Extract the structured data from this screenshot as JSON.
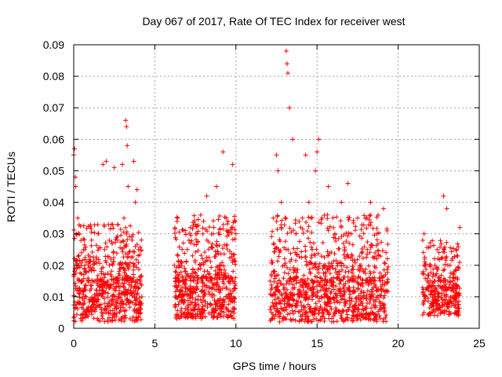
{
  "chart_data": {
    "type": "scatter",
    "title": "Day 067 of 2017, Rate Of TEC Index for receiver west",
    "xlabel": "GPS time / hours",
    "ylabel": "ROTI / TECUs",
    "xlim": [
      0,
      25
    ],
    "ylim": [
      0,
      0.09
    ],
    "xticks": [
      0,
      5,
      10,
      15,
      20,
      25
    ],
    "yticks": [
      0,
      0.01,
      0.02,
      0.03,
      0.04,
      0.05,
      0.06,
      0.07,
      0.08,
      0.09
    ],
    "xtick_labels": [
      "0",
      "5",
      "10",
      "15",
      "20",
      "25"
    ],
    "ytick_labels": [
      "0",
      "0.01",
      "0.02",
      "0.03",
      "0.04",
      "0.05",
      "0.06",
      "0.07",
      "0.08",
      "0.09"
    ],
    "grid": true,
    "marker": "+",
    "series": [
      {
        "name": "ROTI",
        "color": "#ff0000",
        "x": [
          0.0,
          0.05,
          0.1,
          0.12,
          0.15,
          0.18,
          0.2,
          0.25,
          0.3,
          0.35,
          0.4,
          0.5,
          0.6,
          0.7,
          0.8,
          0.9,
          1.0,
          1.1,
          1.2,
          1.3,
          1.4,
          1.5,
          1.6,
          1.7,
          1.8,
          1.9,
          2.0,
          2.1,
          2.2,
          2.3,
          2.4,
          2.5,
          2.6,
          2.7,
          2.8,
          2.9,
          3.0,
          3.1,
          3.2,
          3.25,
          3.3,
          3.35,
          3.4,
          3.5,
          3.6,
          3.7,
          3.8,
          3.9,
          4.0,
          4.1,
          4.2,
          6.2,
          6.4,
          6.6,
          6.8,
          7.0,
          7.2,
          7.4,
          7.6,
          7.8,
          8.0,
          8.2,
          8.4,
          8.6,
          8.8,
          9.0,
          9.2,
          9.4,
          9.6,
          9.8,
          10.0,
          12.1,
          12.3,
          12.5,
          12.6,
          12.8,
          13.0,
          13.1,
          13.15,
          13.2,
          13.3,
          13.5,
          13.7,
          13.9,
          14.1,
          14.3,
          14.5,
          14.7,
          14.9,
          15.0,
          15.1,
          15.3,
          15.5,
          15.7,
          15.9,
          16.1,
          16.3,
          16.5,
          16.7,
          16.9,
          17.1,
          17.3,
          17.5,
          17.7,
          17.9,
          18.1,
          18.3,
          18.5,
          18.7,
          18.9,
          19.1,
          19.3,
          21.6,
          21.8,
          22.0,
          22.2,
          22.4,
          22.6,
          22.8,
          23.0,
          23.2,
          23.4,
          23.6,
          23.8
        ],
        "y": [
          0.055,
          0.057,
          0.048,
          0.045,
          0.03,
          0.02,
          0.012,
          0.035,
          0.02,
          0.011,
          0.008,
          0.015,
          0.025,
          0.01,
          0.006,
          0.02,
          0.012,
          0.028,
          0.009,
          0.015,
          0.021,
          0.03,
          0.012,
          0.018,
          0.052,
          0.025,
          0.053,
          0.015,
          0.02,
          0.009,
          0.033,
          0.051,
          0.012,
          0.028,
          0.018,
          0.009,
          0.052,
          0.035,
          0.066,
          0.064,
          0.058,
          0.045,
          0.02,
          0.012,
          0.028,
          0.053,
          0.04,
          0.044,
          0.025,
          0.015,
          0.01,
          0.02,
          0.035,
          0.012,
          0.008,
          0.025,
          0.032,
          0.015,
          0.03,
          0.02,
          0.034,
          0.042,
          0.015,
          0.03,
          0.045,
          0.02,
          0.056,
          0.035,
          0.015,
          0.052,
          0.03,
          0.015,
          0.035,
          0.055,
          0.05,
          0.04,
          0.02,
          0.088,
          0.084,
          0.081,
          0.07,
          0.06,
          0.03,
          0.012,
          0.035,
          0.055,
          0.04,
          0.025,
          0.05,
          0.056,
          0.06,
          0.035,
          0.02,
          0.045,
          0.015,
          0.03,
          0.012,
          0.04,
          0.025,
          0.046,
          0.03,
          0.015,
          0.035,
          0.02,
          0.01,
          0.025,
          0.04,
          0.015,
          0.03,
          0.008,
          0.038,
          0.012,
          0.03,
          0.015,
          0.02,
          0.008,
          0.025,
          0.015,
          0.042,
          0.038,
          0.02,
          0.012,
          0.025,
          0.032
        ],
        "dense_bands": [
          {
            "xmin": 0.0,
            "xmax": 4.2,
            "ylow": 0.002,
            "ytypical": 0.015,
            "yhigh": 0.033,
            "n": 620
          },
          {
            "xmin": 6.2,
            "xmax": 10.0,
            "ylow": 0.003,
            "ytypical": 0.016,
            "yhigh": 0.036,
            "n": 580
          },
          {
            "xmin": 12.1,
            "xmax": 19.4,
            "ylow": 0.002,
            "ytypical": 0.015,
            "yhigh": 0.036,
            "n": 1000
          },
          {
            "xmin": 21.5,
            "xmax": 23.8,
            "ylow": 0.004,
            "ytypical": 0.013,
            "yhigh": 0.028,
            "n": 320
          }
        ]
      }
    ]
  }
}
